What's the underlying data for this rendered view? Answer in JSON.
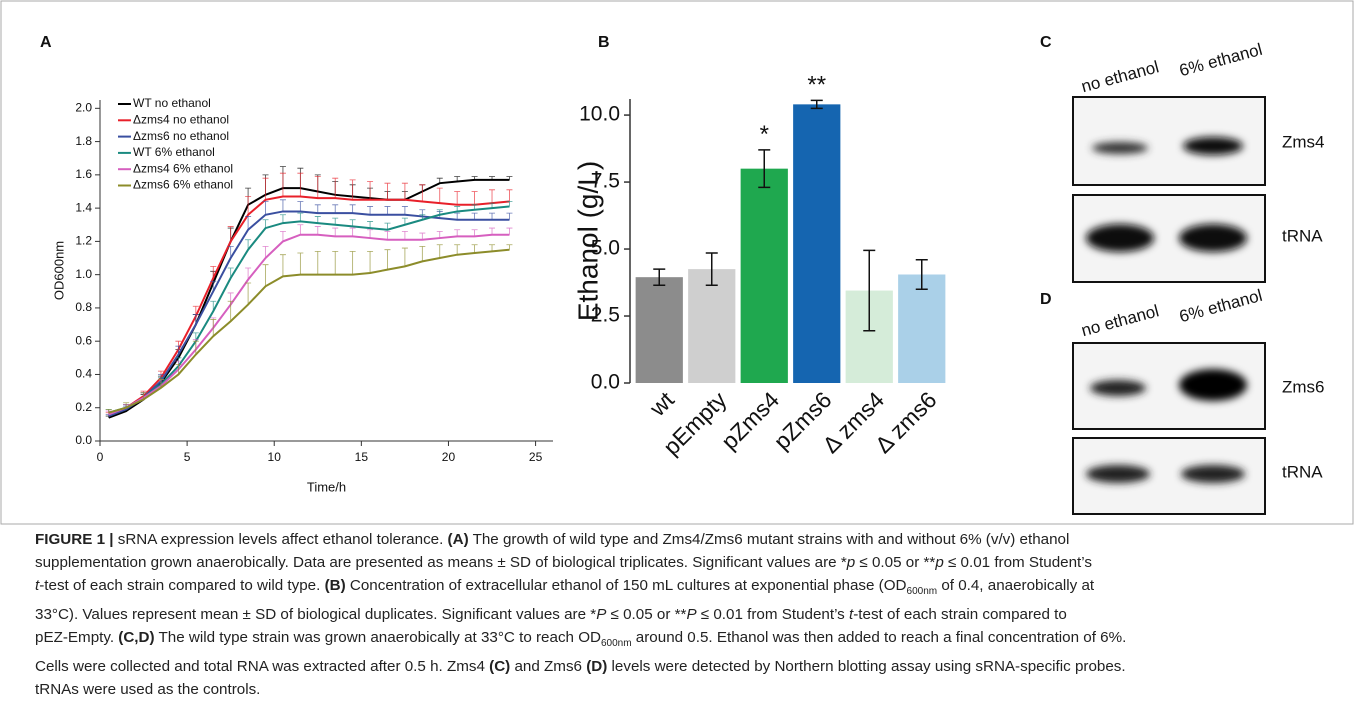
{
  "chart_data": [
    {
      "type": "line",
      "panel": "A",
      "xlabel": "Time/h",
      "ylabel": "OD600nm",
      "x": [
        0.5,
        1.5,
        2.5,
        3.5,
        4.5,
        5.5,
        6.5,
        7.5,
        8.5,
        9.5,
        10.5,
        11.5,
        12.5,
        13.5,
        14.5,
        15.5,
        16.5,
        17.5,
        18.5,
        19.5,
        20.5,
        21.5,
        22.5,
        23.5
      ],
      "xlim": [
        0,
        26
      ],
      "xticks": [
        0,
        5,
        10,
        15,
        20,
        25
      ],
      "ylim": [
        0,
        2.05
      ],
      "yticks": [
        {
          "value": 0,
          "label": "0.0"
        },
        0.2,
        0.4,
        0.6,
        0.8,
        {
          "value": 1,
          "label": "1.0"
        },
        1.2,
        1.4,
        1.6,
        1.8,
        {
          "value": 2,
          "label": "2.0"
        }
      ],
      "legend": "upper left",
      "series": [
        {
          "name": "WT no ethanol",
          "color": "#000000",
          "values": [
            0.14,
            0.18,
            0.25,
            0.35,
            0.5,
            0.7,
            0.95,
            1.2,
            1.42,
            1.48,
            1.52,
            1.52,
            1.5,
            1.48,
            1.47,
            1.46,
            1.45,
            1.45,
            1.5,
            1.55,
            1.56,
            1.57,
            1.57,
            1.57
          ],
          "errors": [
            0.01,
            0.02,
            0.03,
            0.04,
            0.05,
            0.06,
            0.07,
            0.08,
            0.1,
            0.12,
            0.13,
            0.12,
            0.1,
            0.08,
            0.07,
            0.06,
            0.05,
            0.05,
            0.04,
            0.03,
            0.03,
            0.02,
            0.02,
            0.02
          ]
        },
        {
          "name": "Δzms4 no ethanol",
          "color": "#e8202a",
          "values": [
            0.16,
            0.2,
            0.27,
            0.38,
            0.55,
            0.75,
            0.98,
            1.2,
            1.36,
            1.45,
            1.47,
            1.47,
            1.46,
            1.46,
            1.45,
            1.45,
            1.45,
            1.45,
            1.44,
            1.43,
            1.42,
            1.42,
            1.43,
            1.44
          ],
          "errors": [
            0.01,
            0.02,
            0.03,
            0.04,
            0.05,
            0.06,
            0.07,
            0.09,
            0.11,
            0.13,
            0.14,
            0.14,
            0.13,
            0.12,
            0.12,
            0.11,
            0.1,
            0.1,
            0.1,
            0.09,
            0.08,
            0.08,
            0.08,
            0.07
          ]
        },
        {
          "name": "Δzms6 no ethanol",
          "color": "#3a4fa0",
          "values": [
            0.15,
            0.19,
            0.26,
            0.36,
            0.52,
            0.7,
            0.9,
            1.1,
            1.27,
            1.36,
            1.38,
            1.38,
            1.37,
            1.37,
            1.37,
            1.36,
            1.36,
            1.36,
            1.35,
            1.34,
            1.33,
            1.33,
            1.33,
            1.33
          ],
          "errors": [
            0.01,
            0.02,
            0.03,
            0.04,
            0.05,
            0.06,
            0.06,
            0.07,
            0.08,
            0.08,
            0.07,
            0.06,
            0.05,
            0.05,
            0.05,
            0.05,
            0.05,
            0.05,
            0.04,
            0.04,
            0.04,
            0.04,
            0.04,
            0.04
          ]
        },
        {
          "name": "WT 6% ethanol",
          "color": "#1a8a80",
          "values": [
            0.17,
            0.2,
            0.26,
            0.34,
            0.45,
            0.6,
            0.78,
            0.98,
            1.15,
            1.28,
            1.31,
            1.32,
            1.31,
            1.3,
            1.29,
            1.28,
            1.27,
            1.3,
            1.33,
            1.36,
            1.38,
            1.39,
            1.4,
            1.41
          ],
          "errors": [
            0.02,
            0.02,
            0.03,
            0.04,
            0.05,
            0.05,
            0.06,
            0.06,
            0.06,
            0.05,
            0.05,
            0.05,
            0.04,
            0.04,
            0.04,
            0.04,
            0.04,
            0.04,
            0.03,
            0.03,
            0.03,
            0.03,
            0.03,
            0.03
          ]
        },
        {
          "name": "Δzms4 6% ethanol",
          "color": "#d65fbf",
          "values": [
            0.16,
            0.2,
            0.26,
            0.33,
            0.43,
            0.55,
            0.68,
            0.82,
            0.97,
            1.1,
            1.2,
            1.24,
            1.24,
            1.23,
            1.23,
            1.22,
            1.21,
            1.21,
            1.21,
            1.22,
            1.23,
            1.23,
            1.24,
            1.24
          ],
          "errors": [
            0.02,
            0.02,
            0.03,
            0.04,
            0.05,
            0.06,
            0.06,
            0.07,
            0.07,
            0.07,
            0.06,
            0.06,
            0.05,
            0.05,
            0.05,
            0.05,
            0.05,
            0.05,
            0.04,
            0.04,
            0.04,
            0.04,
            0.04,
            0.04
          ]
        },
        {
          "name": "Δzms6 6% ethanol",
          "color": "#8c8c2a",
          "values": [
            0.17,
            0.2,
            0.25,
            0.32,
            0.4,
            0.52,
            0.63,
            0.72,
            0.82,
            0.93,
            0.99,
            1.0,
            1.0,
            1.0,
            1.0,
            1.01,
            1.03,
            1.05,
            1.08,
            1.1,
            1.12,
            1.13,
            1.14,
            1.15
          ],
          "errors": [
            0.02,
            0.03,
            0.04,
            0.05,
            0.06,
            0.08,
            0.1,
            0.12,
            0.13,
            0.13,
            0.13,
            0.13,
            0.14,
            0.14,
            0.14,
            0.13,
            0.12,
            0.11,
            0.09,
            0.08,
            0.06,
            0.05,
            0.04,
            0.03
          ]
        }
      ]
    },
    {
      "type": "bar",
      "panel": "B",
      "ylabel": "Ethanol (g/L)",
      "categories": [
        "wt",
        "pEmpty",
        "pZms4",
        "pZms6",
        "Δ zms4",
        "Δ zms6"
      ],
      "values": [
        3.95,
        4.25,
        8.0,
        10.4,
        3.45,
        4.05
      ],
      "errors": [
        0.3,
        0.6,
        0.7,
        0.15,
        1.5,
        0.55
      ],
      "colors": [
        "#8c8c8c",
        "#cfcfcf",
        "#1fa84f",
        "#1565b0",
        "#d5ecd9",
        "#aad0e8"
      ],
      "annotations": [
        null,
        null,
        "*",
        "**",
        null,
        null
      ],
      "ylim": [
        0,
        10.6
      ],
      "yticks": [
        {
          "value": 0,
          "label": "0.0"
        },
        2.5,
        {
          "value": 5,
          "label": "5.0"
        },
        7.5,
        {
          "value": 10,
          "label": "10.0"
        }
      ]
    }
  ],
  "blots": [
    {
      "panel": "C",
      "lanes": [
        "no ethanol",
        "6%  ethanol"
      ],
      "rows": [
        "Zms4",
        "tRNA"
      ]
    },
    {
      "panel": "D",
      "lanes": [
        "no ethanol",
        "6%  ethanol"
      ],
      "rows": [
        "Zms6",
        "tRNA"
      ]
    }
  ],
  "caption": [
    "FIGURE 1 |",
    " sRNA expression levels affect ethanol tolerance. ",
    "(A)",
    " The growth of wild type and Zms4/Zms6 mutant strains with and without 6% (v/v) ethanol",
    "supplementation grown anaerobically. Data are presented as means ± SD of biological triplicates. Significant values are *",
    "p",
    " ≤ 0.05 or **",
    "p",
    " ≤ 0.01 from Student’s",
    "t",
    "-test of each strain compared to wild type. ",
    "(B)",
    " Concentration of extracellular ethanol of 150 mL cultures at exponential phase (OD",
    "600nm",
    " of 0.4, anaerobically at",
    "33°C). Values represent mean ± SD of biological duplicates. Significant values are *",
    "P",
    " ≤ 0.05 or **",
    "P",
    " ≤ 0.01 from Student’s ",
    "t",
    "-test of each strain compared to",
    "pEZ-Empty. ",
    "(C,D)",
    " The wild type strain was grown anaerobically at 33°C to reach OD",
    "600nm",
    " around 0.5. Ethanol was then added to reach a final concentration of 6%.",
    "Cells were collected and total RNA was extracted after 0.5 h. Zms4 ",
    "(C)",
    " and Zms6 ",
    "(D)",
    " levels were detected by Northern blotting assay using sRNA-specific probes.",
    "tRNAs were used as the controls."
  ]
}
